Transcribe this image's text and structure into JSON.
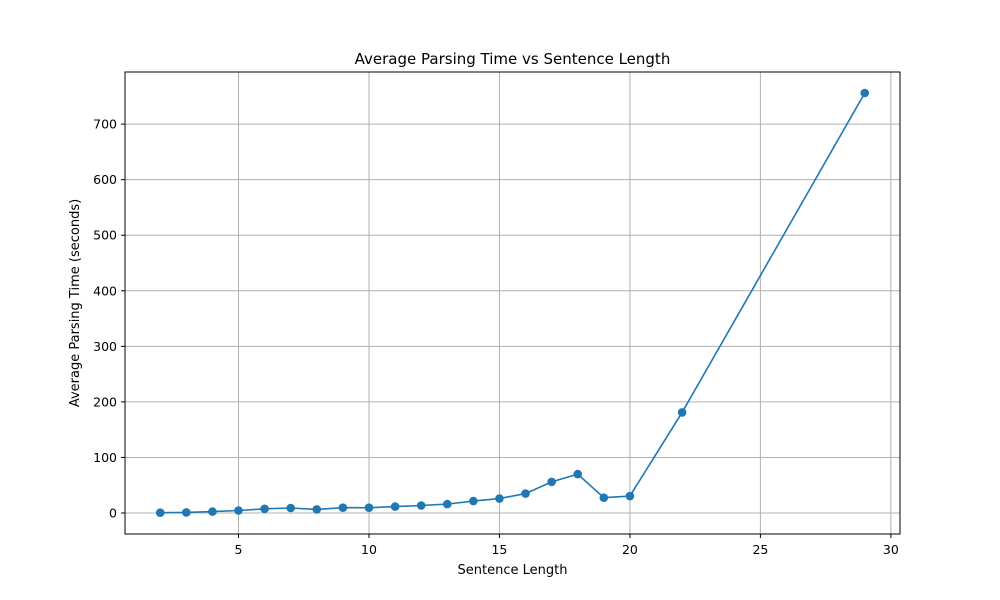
{
  "chart_data": {
    "type": "line",
    "title": "Average Parsing Time vs Sentence Length",
    "xlabel": "Sentence Length",
    "ylabel": "Average Parsing Time (seconds)",
    "xlim": [
      0.65,
      30.35
    ],
    "ylim": [
      -37.8,
      793.8
    ],
    "xticks": [
      5,
      10,
      15,
      20,
      25,
      30
    ],
    "yticks": [
      0,
      100,
      200,
      300,
      400,
      500,
      600,
      700
    ],
    "grid": true,
    "series": [
      {
        "color": "#1f77b4",
        "marker": "circle",
        "x": [
          2,
          3,
          4,
          5,
          6,
          7,
          8,
          9,
          10,
          11,
          12,
          13,
          14,
          15,
          16,
          17,
          18,
          19,
          20,
          22,
          29
        ],
        "y": [
          0.5,
          1,
          2.5,
          4.5,
          7.5,
          9,
          6.5,
          9.5,
          9.5,
          11.5,
          13.5,
          16,
          21.5,
          26,
          35,
          56,
          70,
          27.5,
          30.5,
          181,
          756
        ]
      }
    ]
  }
}
